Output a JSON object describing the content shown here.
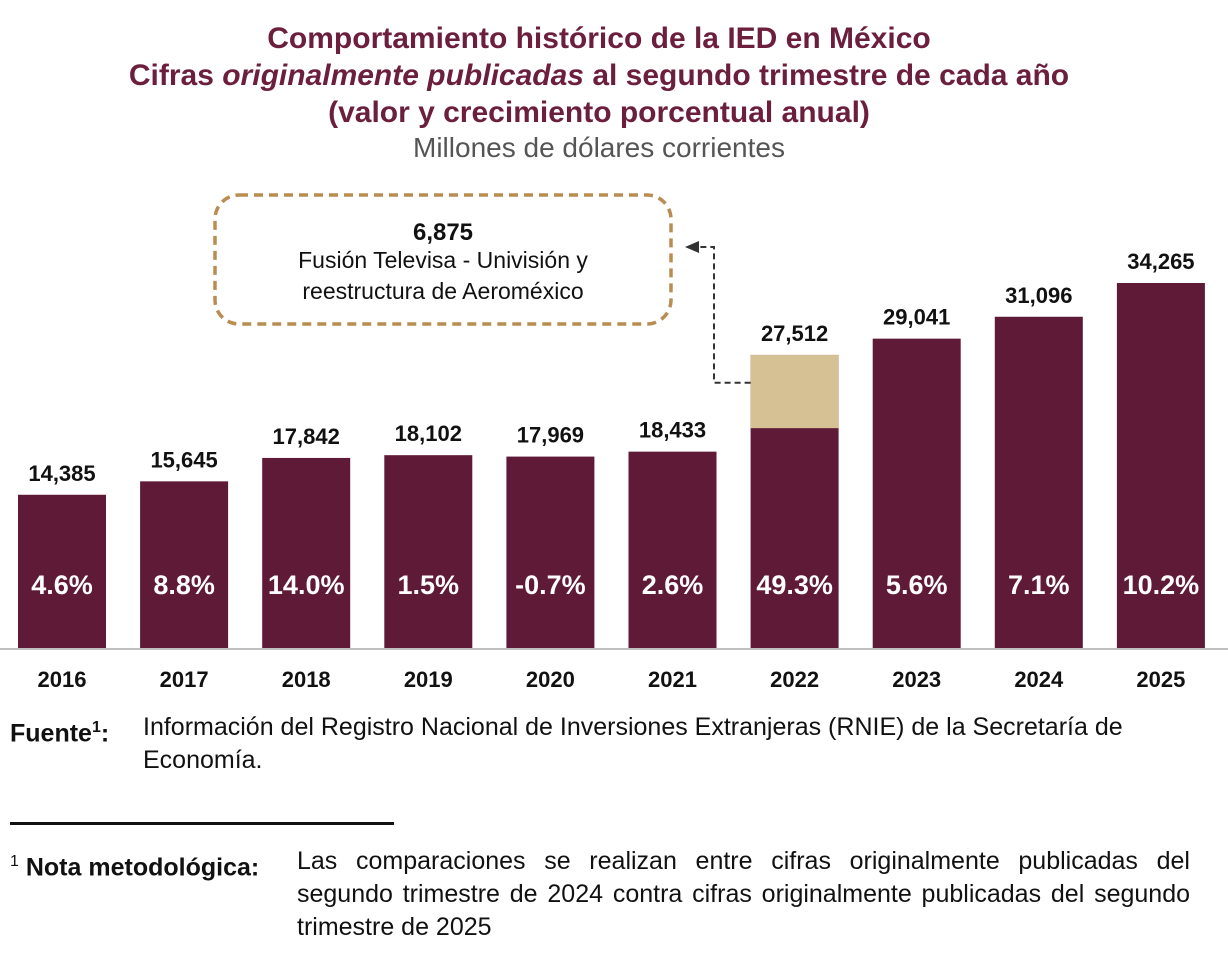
{
  "header": {
    "title": "Comportamiento histórico de la IED en México",
    "subtitle_pre": "Cifras ",
    "subtitle_italic": "originalmente publicadas",
    "subtitle_post": " al segundo trimestre de cada año",
    "subtitle_line3": "(valor y crecimiento porcentual anual)",
    "units": "Millones de dólares corrientes"
  },
  "colors": {
    "bar": "#5f1a38",
    "highlight": "#d5c193",
    "callout_border": "#b98d52",
    "title": "#6b1f3d"
  },
  "chart_data": {
    "type": "bar",
    "title": "Comportamiento histórico de la IED en México",
    "ylabel": "Millones de dólares corrientes",
    "categories": [
      "2016",
      "2017",
      "2018",
      "2019",
      "2020",
      "2021",
      "2022",
      "2023",
      "2024",
      "2025"
    ],
    "values": [
      14385,
      15645,
      17842,
      18102,
      17969,
      18433,
      27512,
      29041,
      31096,
      34265
    ],
    "value_labels": [
      "14,385",
      "15,645",
      "17,842",
      "18,102",
      "17,969",
      "18,433",
      "27,512",
      "29,041",
      "31,096",
      "34,265"
    ],
    "growth_labels": [
      "4.6%",
      "8.8%",
      "14.0%",
      "1.5%",
      "-0.7%",
      "2.6%",
      "49.3%",
      "5.6%",
      "7.1%",
      "10.2%"
    ],
    "highlight": {
      "category": "2022",
      "value": 6875,
      "value_label": "6,875",
      "line1": "Fusión Televisa - Univisión y",
      "line2": "reestructura de Aeroméxico"
    },
    "ylim": [
      0,
      34265
    ],
    "grid": false,
    "legend": "none"
  },
  "source": {
    "label": "Fuente",
    "sup": "1",
    "colon": ":",
    "text": "Información del Registro Nacional de Inversiones Extranjeras (RNIE) de la Secretaría de Economía."
  },
  "footnote": {
    "marker": "1",
    "label": "Nota metodológica:",
    "text": "Las comparaciones se realizan entre cifras originalmente publicadas del segundo trimestre de 2024 contra cifras originalmente publicadas del segundo trimestre de 2025"
  }
}
